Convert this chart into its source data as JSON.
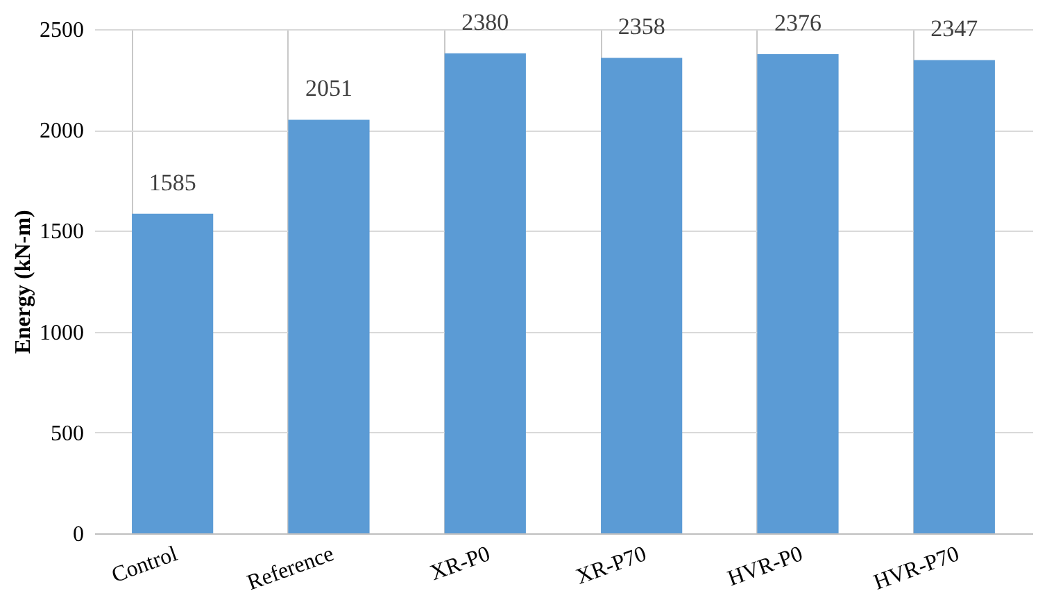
{
  "chart_data": {
    "type": "bar",
    "ylabel": "Energy (kN-m)",
    "categories": [
      "Control",
      "Reference",
      "XR-P0",
      "XR-P70",
      "HVR-P0",
      "HVR-P70"
    ],
    "values": [
      1585,
      2051,
      2380,
      2358,
      2376,
      2347
    ],
    "color": "#5b9bd5",
    "ylim": [
      0,
      2500
    ],
    "yticks": [
      0,
      500,
      1000,
      1500,
      2000,
      2500
    ],
    "grid": true,
    "data_labels": true
  }
}
